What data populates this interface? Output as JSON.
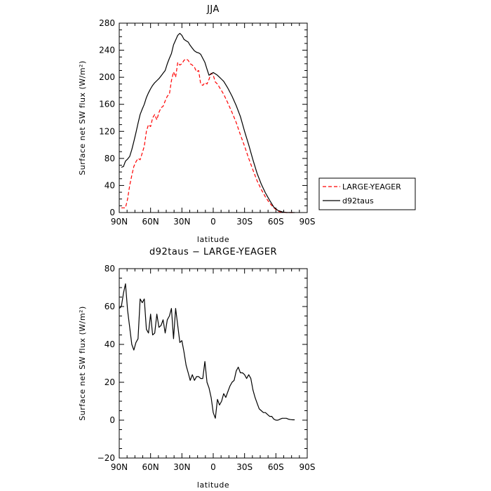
{
  "chart_data": [
    {
      "type": "line",
      "title": "JJA",
      "xlabel": "latitude",
      "ylabel": "Surface net SW flux (W/m²)",
      "xlim": [
        90,
        -90
      ],
      "ylim": [
        0,
        280
      ],
      "xticks": [
        90,
        60,
        30,
        0,
        -30,
        -60,
        -90
      ],
      "xtick_labels": [
        "90N",
        "60N",
        "30N",
        "0",
        "30S",
        "60S",
        "90S"
      ],
      "yticks": [
        0,
        40,
        80,
        120,
        160,
        200,
        240,
        280
      ],
      "ytick_labels": [
        "0",
        "40",
        "80",
        "120",
        "160",
        "200",
        "240",
        "280"
      ],
      "legend_position": "right",
      "series": [
        {
          "name": "LARGE-YEAGER",
          "color": "#ff0000",
          "dash": "dashed",
          "x": [
            88,
            84,
            82,
            80,
            78,
            76,
            74,
            72,
            70,
            68,
            66,
            64,
            62,
            60,
            58,
            56,
            54,
            52,
            50,
            48,
            46,
            44,
            42,
            40,
            38,
            36,
            34,
            32,
            30,
            28,
            26,
            24,
            22,
            20,
            18,
            16,
            14,
            12,
            10,
            8,
            6,
            4,
            2,
            0,
            -2,
            -4,
            -6,
            -8,
            -10,
            -14,
            -18,
            -22,
            -26,
            -30,
            -34,
            -38,
            -42,
            -46,
            -50,
            -54,
            -58,
            -62,
            -66,
            -70,
            -72,
            -74,
            -76,
            -78
          ],
          "y": [
            7,
            7,
            20,
            40,
            55,
            68,
            75,
            80,
            78,
            88,
            98,
            120,
            130,
            127,
            140,
            145,
            137,
            148,
            155,
            157,
            165,
            172,
            175,
            195,
            208,
            200,
            222,
            218,
            220,
            225,
            227,
            225,
            220,
            218,
            215,
            208,
            210,
            190,
            188,
            192,
            190,
            197,
            206,
            203,
            193,
            190,
            185,
            180,
            175,
            162,
            148,
            133,
            115,
            98,
            80,
            63,
            47,
            34,
            23,
            14,
            7,
            2,
            0.5,
            0,
            0,
            0,
            0,
            0
          ]
        },
        {
          "name": "d92taus",
          "color": "#000000",
          "dash": "solid",
          "x": [
            88,
            86,
            84,
            82,
            80,
            78,
            76,
            74,
            72,
            70,
            68,
            66,
            64,
            62,
            60,
            58,
            56,
            54,
            52,
            50,
            48,
            46,
            44,
            42,
            40,
            38,
            36,
            34,
            32,
            30,
            28,
            26,
            24,
            22,
            20,
            18,
            16,
            14,
            12,
            10,
            8,
            6,
            4,
            2,
            0,
            -2,
            -4,
            -6,
            -8,
            -10,
            -14,
            -18,
            -22,
            -26,
            -30,
            -34,
            -38,
            -42,
            -46,
            -50,
            -54,
            -58,
            -62,
            -66,
            -70,
            -72,
            -74,
            -76,
            -78
          ],
          "y": [
            67,
            68,
            76,
            79,
            83,
            93,
            105,
            118,
            132,
            145,
            153,
            160,
            170,
            177,
            183,
            188,
            192,
            195,
            198,
            202,
            206,
            210,
            220,
            228,
            235,
            248,
            255,
            262,
            265,
            262,
            256,
            254,
            252,
            247,
            243,
            239,
            237,
            236,
            234,
            228,
            222,
            212,
            203,
            205,
            207,
            205,
            203,
            200,
            197,
            194,
            184,
            172,
            158,
            142,
            120,
            100,
            78,
            58,
            42,
            29,
            18,
            8,
            3,
            1,
            0,
            0,
            0,
            0,
            0
          ]
        }
      ]
    },
    {
      "type": "line",
      "title": "d92taus − LARGE-YEAGER",
      "xlabel": "latitude",
      "ylabel": "Surface net SW flux (W/m²)",
      "xlim": [
        90,
        -90
      ],
      "ylim": [
        -20,
        80
      ],
      "xticks": [
        90,
        60,
        30,
        0,
        -30,
        -60,
        -90
      ],
      "xtick_labels": [
        "90N",
        "60N",
        "30N",
        "0",
        "30S",
        "60S",
        "90S"
      ],
      "yticks": [
        -20,
        0,
        20,
        40,
        60,
        80
      ],
      "ytick_labels": [
        "−20",
        "0",
        "20",
        "40",
        "60",
        "80"
      ],
      "series": [
        {
          "color": "#000000",
          "dash": "solid",
          "x": [
            90,
            88,
            86,
            84,
            82,
            80,
            78,
            76,
            74,
            72,
            70,
            68,
            66,
            64,
            62,
            60,
            58,
            56,
            54,
            52,
            50,
            48,
            46,
            44,
            42,
            40,
            38,
            36,
            34,
            32,
            30,
            28,
            26,
            24,
            22,
            20,
            18,
            16,
            14,
            12,
            10,
            8,
            6,
            4,
            2,
            0,
            -2,
            -4,
            -6,
            -8,
            -10,
            -12,
            -14,
            -16,
            -18,
            -20,
            -22,
            -24,
            -26,
            -28,
            -30,
            -32,
            -34,
            -36,
            -38,
            -40,
            -42,
            -44,
            -46,
            -48,
            -50,
            -52,
            -54,
            -56,
            -58,
            -60,
            -62,
            -64,
            -66,
            -68,
            -70,
            -72,
            -74,
            -76,
            -78
          ],
          "y": [
            59,
            60,
            67,
            72,
            58,
            49,
            40,
            37,
            41,
            43,
            64,
            62,
            64,
            48,
            46,
            56,
            45,
            46,
            56,
            49,
            50,
            53,
            46,
            53,
            55,
            59,
            43,
            59,
            50,
            41,
            42,
            36,
            29,
            25,
            21,
            24,
            21,
            23,
            23,
            22,
            22,
            31,
            20,
            17,
            12,
            4,
            1,
            11,
            8,
            10,
            14,
            12,
            15,
            18,
            20,
            21,
            26,
            28,
            25,
            25,
            24,
            22,
            24,
            22,
            16,
            12,
            9,
            6,
            5,
            4,
            4,
            3,
            2,
            2,
            0.5,
            0,
            0,
            0.5,
            1,
            1,
            1,
            0.5,
            0.3,
            0.2,
            0.2
          ]
        }
      ]
    }
  ]
}
